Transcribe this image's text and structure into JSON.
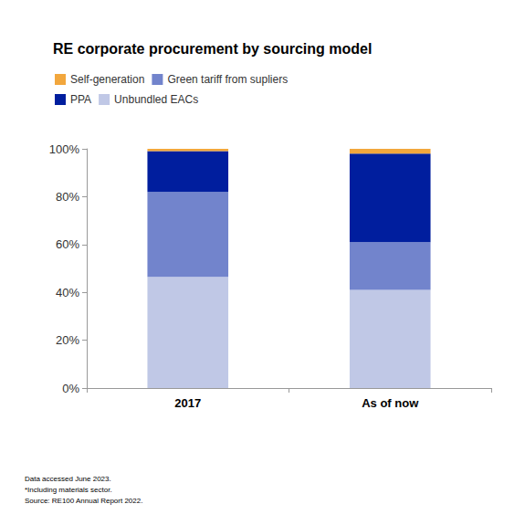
{
  "chart_data": {
    "type": "bar",
    "title": "RE corporate procurement by sourcing model",
    "categories": [
      "2017",
      "As of now"
    ],
    "series": [
      {
        "name": "Unbundled EACs",
        "color": "#c0c8e6",
        "values": [
          46.5,
          41
        ]
      },
      {
        "name": "Green tariff from supliers",
        "color": "#7284cc",
        "values": [
          35.5,
          20
        ]
      },
      {
        "name": "PPA",
        "color": "#001e9e",
        "values": [
          17,
          37
        ]
      },
      {
        "name": "Self-generation",
        "color": "#f2a73d",
        "values": [
          1,
          2
        ]
      }
    ],
    "ylim": [
      0,
      100
    ],
    "yticks": [
      {
        "value": 0,
        "label": "0%"
      },
      {
        "value": 20,
        "label": "20%"
      },
      {
        "value": 40,
        "label": "40%"
      },
      {
        "value": 60,
        "label": "60%"
      },
      {
        "value": 80,
        "label": "80%"
      },
      {
        "value": 100,
        "label": "100%"
      }
    ],
    "stacked": true,
    "grid": false,
    "legend": "top-left",
    "notes": [
      "Data accessed June 2023.",
      "*Including materials sector.",
      "Source: RE100 Annual Report 2022."
    ]
  }
}
